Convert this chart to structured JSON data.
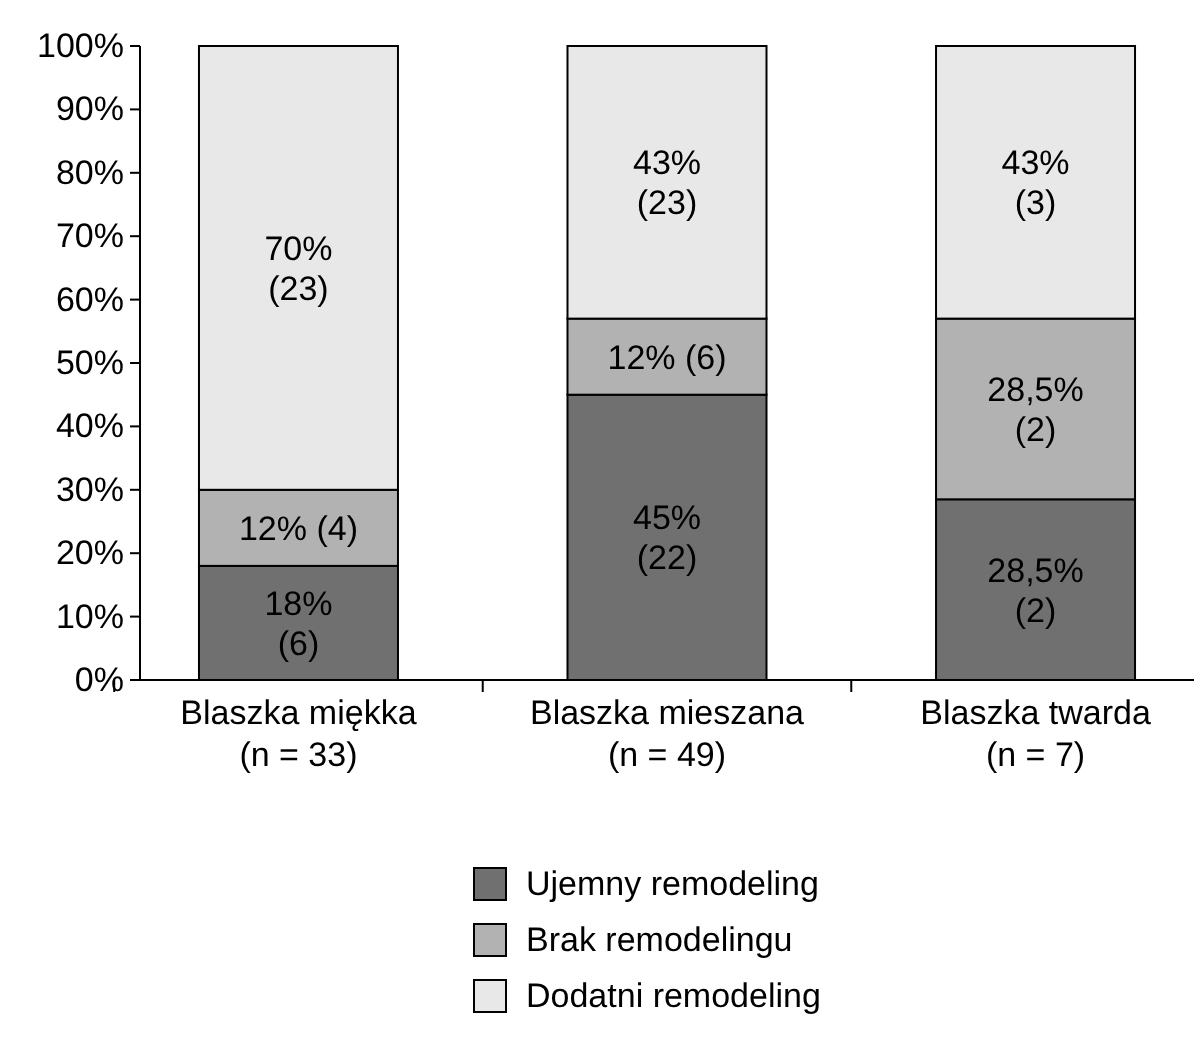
{
  "chart_data": {
    "type": "bar",
    "stacked": true,
    "categories": [
      "Blaszka miękka\n(n = 33)",
      "Blaszka mieszana\n(n = 49)",
      "Blaszka twarda\n(n = 7)"
    ],
    "ylim": [
      0,
      100
    ],
    "yticks": [
      {
        "value": 0,
        "label": "0%"
      },
      {
        "value": 10,
        "label": "10%"
      },
      {
        "value": 20,
        "label": "20%"
      },
      {
        "value": 30,
        "label": "30%"
      },
      {
        "value": 40,
        "label": "40%"
      },
      {
        "value": 50,
        "label": "50%"
      },
      {
        "value": 60,
        "label": "60%"
      },
      {
        "value": 70,
        "label": "70%"
      },
      {
        "value": 80,
        "label": "80%"
      },
      {
        "value": 90,
        "label": "90%"
      },
      {
        "value": 100,
        "label": "100%"
      }
    ],
    "grid": false,
    "legend": "bottom",
    "series": [
      {
        "name": "Ujemny remodeling",
        "color": "#707070",
        "values": [
          18,
          45,
          28.5
        ],
        "value_labels": [
          "18%\n(6)",
          "45%\n(22)",
          "28,5%\n(2)"
        ]
      },
      {
        "name": "Brak remodelingu",
        "color": "#b2b2b2",
        "values": [
          12,
          12,
          28.5
        ],
        "value_labels": [
          "12% (4)",
          "12% (6)",
          "28,5%\n(2)"
        ]
      },
      {
        "name": "Dodatni remodeling",
        "color": "#e8e8e8",
        "values": [
          70,
          43,
          43
        ],
        "value_labels": [
          "70%\n(23)",
          "43%\n(23)",
          "43%\n(3)"
        ]
      }
    ]
  }
}
